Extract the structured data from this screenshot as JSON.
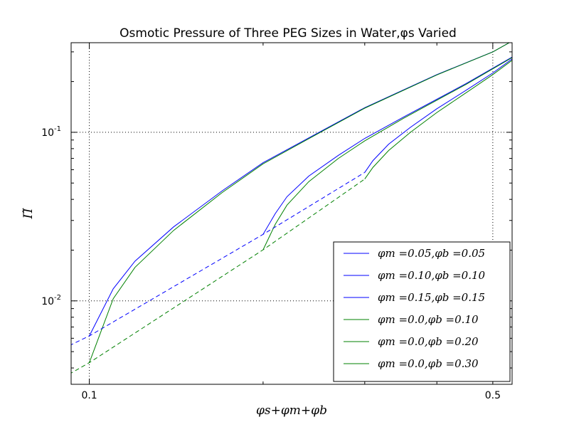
{
  "chart_data": {
    "type": "line",
    "title": "Osmotic Pressure of Three PEG Sizes in Water,φs Varied",
    "xlabel": "φs+φm+φb",
    "ylabel": "Π̃",
    "xscale": "log",
    "yscale": "log",
    "xlim": [
      0.093,
      0.54
    ],
    "ylim": [
      0.0032,
      0.34
    ],
    "xticks": [
      {
        "value": 0.1,
        "label": "0.1"
      },
      {
        "value": 0.5,
        "label": "0.5"
      }
    ],
    "yticks": [
      {
        "value": 0.01,
        "label": "10",
        "exp": "-2"
      },
      {
        "value": 0.1,
        "label": "10",
        "exp": "-1"
      }
    ],
    "grid": true,
    "legend_position": "lower-right",
    "series": [
      {
        "name": "φm =0.05,φb =0.05",
        "color": "#0000ff",
        "dash": "solid",
        "x": [
          0.1,
          0.11,
          0.12,
          0.14,
          0.17,
          0.2,
          0.25,
          0.3,
          0.4,
          0.5,
          0.55
        ],
        "y": [
          0.0062,
          0.0118,
          0.0172,
          0.0275,
          0.045,
          0.066,
          0.1,
          0.14,
          0.22,
          0.3,
          0.36
        ]
      },
      {
        "name": "φm =0.10,φb =0.10",
        "color": "#0000ff",
        "dash": "solid",
        "x": [
          0.2,
          0.21,
          0.22,
          0.24,
          0.27,
          0.3,
          0.35,
          0.4,
          0.45,
          0.5,
          0.55
        ],
        "y": [
          0.0248,
          0.033,
          0.0415,
          0.055,
          0.073,
          0.092,
          0.123,
          0.157,
          0.195,
          0.24,
          0.29
        ]
      },
      {
        "name": "φm =0.15,φb =0.15",
        "color": "#0000ff",
        "dash": "solid",
        "x": [
          0.3,
          0.31,
          0.33,
          0.36,
          0.4,
          0.45,
          0.5,
          0.55
        ],
        "y": [
          0.0578,
          0.068,
          0.085,
          0.107,
          0.138,
          0.178,
          0.225,
          0.285
        ]
      },
      {
        "name": "φm =0.0,φb =0.10",
        "color": "#008000",
        "dash": "solid",
        "x": [
          0.1,
          0.11,
          0.12,
          0.14,
          0.17,
          0.2,
          0.25,
          0.3,
          0.4,
          0.5,
          0.55
        ],
        "y": [
          0.0043,
          0.0103,
          0.0158,
          0.0262,
          0.044,
          0.065,
          0.099,
          0.139,
          0.219,
          0.3,
          0.36
        ]
      },
      {
        "name": "φm =0.0,φb =0.20",
        "color": "#008000",
        "dash": "solid",
        "x": [
          0.2,
          0.21,
          0.22,
          0.24,
          0.27,
          0.3,
          0.35,
          0.4,
          0.45,
          0.5,
          0.55
        ],
        "y": [
          0.0201,
          0.0285,
          0.037,
          0.051,
          0.07,
          0.089,
          0.121,
          0.155,
          0.193,
          0.238,
          0.288
        ]
      },
      {
        "name": "φm =0.0,φb =0.30",
        "color": "#008000",
        "dash": "solid",
        "x": [
          0.3,
          0.31,
          0.33,
          0.36,
          0.4,
          0.45,
          0.5,
          0.55
        ],
        "y": [
          0.0528,
          0.062,
          0.078,
          0.1,
          0.131,
          0.172,
          0.22,
          0.28
        ]
      },
      {
        "color": "#0000ff",
        "dash": "dashed",
        "x": [
          0.09,
          0.1,
          0.2,
          0.3
        ],
        "y": [
          0.0052,
          0.0062,
          0.0248,
          0.0578
        ]
      },
      {
        "color": "#008000",
        "dash": "dashed",
        "x": [
          0.09,
          0.1,
          0.2,
          0.3
        ],
        "y": [
          0.0035,
          0.0043,
          0.0201,
          0.0528
        ]
      }
    ]
  }
}
